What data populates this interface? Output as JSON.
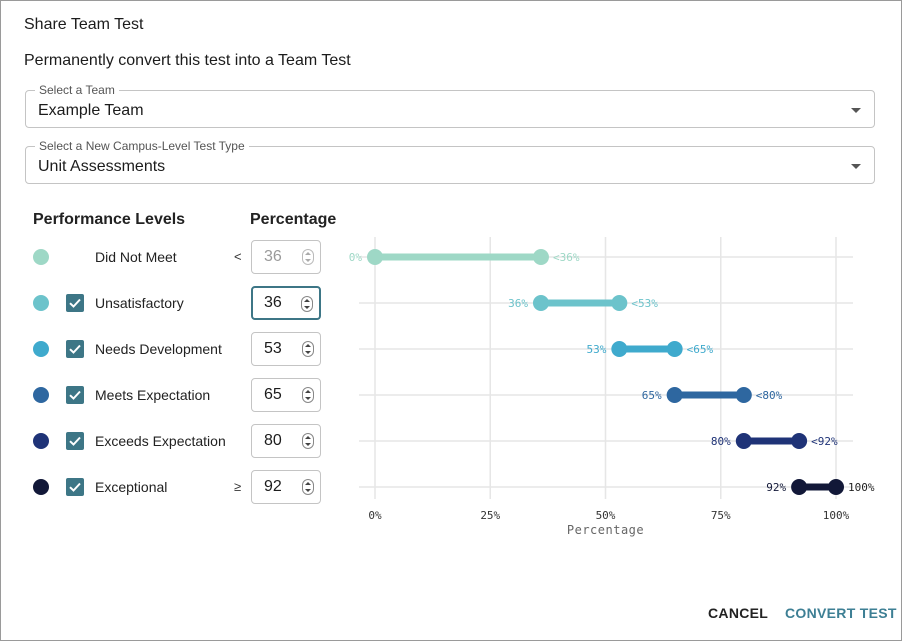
{
  "dialog": {
    "title": "Share Team Test",
    "subtitle": "Permanently convert this test into a Team Test"
  },
  "team_select": {
    "legend": "Select a Team",
    "value": "Example Team"
  },
  "type_select": {
    "legend": "Select a New Campus-Level Test Type",
    "value": "Unit Assessments"
  },
  "columns": {
    "levels": "Performance Levels",
    "percentage": "Percentage"
  },
  "levels": [
    {
      "label": "Did Not Meet",
      "color": "#9ed8c6",
      "checked": null,
      "operator": "<",
      "value": "36",
      "disabled": true
    },
    {
      "label": "Unsatisfactory",
      "color": "#6cc3cb",
      "checked": true,
      "operator": "",
      "value": "36",
      "focused": true
    },
    {
      "label": "Needs Development",
      "color": "#3faacd",
      "checked": true,
      "operator": "",
      "value": "53"
    },
    {
      "label": "Meets Expectation",
      "color": "#2e67a0",
      "checked": true,
      "operator": "",
      "value": "65"
    },
    {
      "label": "Exceeds Expectation",
      "color": "#1f3377",
      "checked": true,
      "operator": "",
      "value": "80"
    },
    {
      "label": "Exceptional",
      "color": "#121838",
      "checked": true,
      "operator": "≥",
      "value": "92"
    }
  ],
  "chart_data": {
    "type": "dumbbell",
    "xlabel": "Percentage",
    "xlim": [
      0,
      100
    ],
    "ticks": [
      "0%",
      "25%",
      "50%",
      "75%",
      "100%"
    ],
    "grid": true,
    "ranges": [
      {
        "start": 0,
        "end": 36,
        "start_label": "0%",
        "end_label": "<36%",
        "color": "#9ed8c6"
      },
      {
        "start": 36,
        "end": 53,
        "start_label": "36%",
        "end_label": "<53%",
        "color": "#6cc3cb"
      },
      {
        "start": 53,
        "end": 65,
        "start_label": "53%",
        "end_label": "<65%",
        "color": "#3faacd"
      },
      {
        "start": 65,
        "end": 80,
        "start_label": "65%",
        "end_label": "<80%",
        "color": "#2e67a0"
      },
      {
        "start": 80,
        "end": 92,
        "start_label": "80%",
        "end_label": "<92%",
        "color": "#1f3377"
      },
      {
        "start": 92,
        "end": 100,
        "start_label": "92%",
        "end_label": "100%",
        "color": "#121838"
      }
    ]
  },
  "actions": {
    "cancel": "CANCEL",
    "convert": "CONVERT TEST"
  }
}
